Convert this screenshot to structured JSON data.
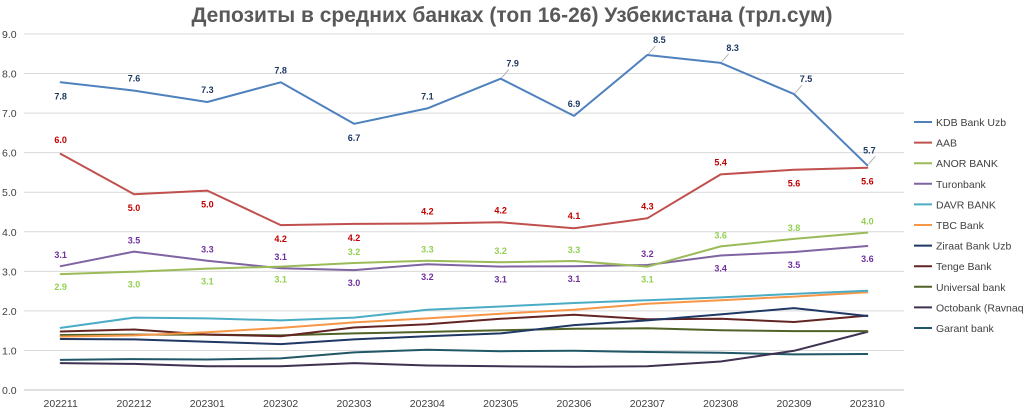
{
  "chart_data": {
    "type": "line",
    "title": "Депозиты в средних банках (топ 16-26) Узбекистана (трл.сум)",
    "xlabel": "",
    "ylabel": "",
    "ylim": [
      0,
      9
    ],
    "yticks": [
      "0.0",
      "1.0",
      "2.0",
      "3.0",
      "4.0",
      "5.0",
      "6.0",
      "7.0",
      "8.0",
      "9.0"
    ],
    "categories": [
      "202211",
      "202212",
      "202301",
      "202302",
      "202303",
      "202304",
      "202305",
      "202306",
      "202307",
      "202308",
      "202309",
      "202310"
    ],
    "grid": true,
    "legend_position": "right",
    "series": [
      {
        "name": "KDB Bank Uzb",
        "color": "#4f81bd",
        "label_color": "#1f3864",
        "values": [
          7.78,
          7.57,
          7.28,
          7.78,
          6.73,
          7.12,
          7.87,
          6.93,
          8.47,
          8.27,
          7.48,
          5.68
        ],
        "labels": [
          "7.8",
          "7.6",
          "7.3",
          "7.8",
          "6.7",
          "7.1",
          "7.9",
          "6.9",
          "8.5",
          "8.3",
          "7.5",
          "5.7"
        ]
      },
      {
        "name": "AAB",
        "color": "#c0504d",
        "label_color": "#c00000",
        "values": [
          5.97,
          4.95,
          5.04,
          4.17,
          4.2,
          4.21,
          4.24,
          4.09,
          4.34,
          5.45,
          5.57,
          5.62
        ],
        "labels": [
          "6.0",
          "5.0",
          "5.0",
          "4.2",
          "4.2",
          "4.2",
          "4.2",
          "4.1",
          "4.3",
          "5.4",
          "5.6",
          "5.6"
        ]
      },
      {
        "name": "ANOR BANK",
        "color": "#9bbb59",
        "label_color": "#92d050",
        "values": [
          2.93,
          2.99,
          3.07,
          3.12,
          3.21,
          3.27,
          3.23,
          3.26,
          3.12,
          3.63,
          3.82,
          3.98
        ],
        "labels": [
          "2.9",
          "3.0",
          "3.1",
          "3.1",
          "3.2",
          "3.3",
          "3.2",
          "3.3",
          "3.1",
          "3.6",
          "3.8",
          "4.0"
        ]
      },
      {
        "name": "Turonbank",
        "color": "#8064a2",
        "label_color": "#7030a0",
        "values": [
          3.13,
          3.5,
          3.27,
          3.08,
          3.03,
          3.18,
          3.12,
          3.13,
          3.16,
          3.4,
          3.49,
          3.64
        ],
        "labels": [
          "3.1",
          "3.5",
          "3.3",
          "3.1",
          "3.0",
          "3.2",
          "3.1",
          "3.1",
          "3.2",
          "3.4",
          "3.5",
          "3.6"
        ]
      },
      {
        "name": "DAVR BANK",
        "color": "#4bacc6",
        "values": [
          1.57,
          1.83,
          1.81,
          1.76,
          1.83,
          2.03,
          2.11,
          2.2,
          2.27,
          2.34,
          2.43,
          2.51
        ]
      },
      {
        "name": "TBC Bank",
        "color": "#f79646",
        "values": [
          1.35,
          1.38,
          1.46,
          1.57,
          1.71,
          1.81,
          1.93,
          2.03,
          2.18,
          2.27,
          2.36,
          2.47
        ]
      },
      {
        "name": "Ziraat Bank Uzb",
        "color": "#1f3864",
        "values": [
          1.29,
          1.28,
          1.22,
          1.16,
          1.28,
          1.36,
          1.43,
          1.64,
          1.76,
          1.91,
          2.07,
          1.87
        ]
      },
      {
        "name": "Tenge Bank",
        "color": "#632523",
        "values": [
          1.48,
          1.53,
          1.4,
          1.36,
          1.58,
          1.66,
          1.8,
          1.9,
          1.79,
          1.8,
          1.72,
          1.88
        ]
      },
      {
        "name": "Universal bank",
        "color": "#4f6228",
        "values": [
          1.39,
          1.4,
          1.4,
          1.38,
          1.43,
          1.47,
          1.51,
          1.55,
          1.56,
          1.51,
          1.49,
          1.49
        ]
      },
      {
        "name": "Octobank (Ravnaq)",
        "color": "#3f3151",
        "values": [
          0.68,
          0.66,
          0.6,
          0.6,
          0.68,
          0.62,
          0.6,
          0.59,
          0.6,
          0.72,
          0.99,
          1.47
        ]
      },
      {
        "name": "Garant bank",
        "color": "#215868",
        "values": [
          0.76,
          0.78,
          0.77,
          0.8,
          0.95,
          1.02,
          0.98,
          0.99,
          0.96,
          0.94,
          0.9,
          0.91
        ]
      }
    ]
  }
}
